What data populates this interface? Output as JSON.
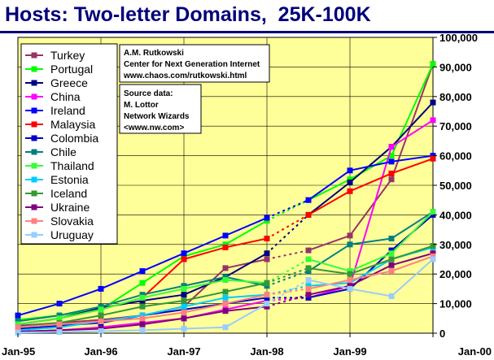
{
  "title": "Hosts: Two-letter Domains,  25K-100K",
  "credit": [
    "A.M. Rutkowski",
    "Center for Next Generation Internet",
    "www.chaos.com/rutkowski.html"
  ],
  "source": [
    "Source data:",
    "M. Lottor",
    "Network Wizards",
    "<www.nw.com>"
  ],
  "colors": {
    "plot_background": "#ffff99",
    "title": "#00007a"
  },
  "chart_data": {
    "type": "line",
    "title": "Hosts: Two-letter Domains,  25K-100K",
    "xlabel": "",
    "ylabel": "",
    "x": [
      1995.0,
      1995.5,
      1996.0,
      1996.5,
      1997.0,
      1997.5,
      1998.0,
      1998.5,
      1999.0,
      1999.5,
      2000.0
    ],
    "x_tick_labels": [
      "Jan-95",
      "Jan-96",
      "Jan-97",
      "Jan-98",
      "Jan-99",
      "Jan-00"
    ],
    "x_tick_positions": [
      1995,
      1996,
      1997,
      1998,
      1999,
      2000
    ],
    "ylim": [
      0,
      100000
    ],
    "y_ticks": [
      0,
      10000,
      20000,
      30000,
      40000,
      50000,
      60000,
      70000,
      80000,
      90000,
      100000
    ],
    "y_tick_labels": [
      "0",
      "10,000",
      "20,000",
      "30,000",
      "40,000",
      "50,000",
      "60,000",
      "70,000",
      "80,000",
      "90,000",
      "100,000"
    ],
    "y_axis_side": "right",
    "grid": true,
    "legend_placement": "left",
    "gap_between": [
      1998.0,
      1998.5
    ],
    "series": [
      {
        "name": "Turkey",
        "color": "#993366",
        "values": [
          2500,
          3500,
          4500,
          6000,
          9000,
          22000,
          25000,
          28000,
          33000,
          52000,
          91000
        ]
      },
      {
        "name": "Portugal",
        "color": "#00ff00",
        "values": [
          4500,
          6000,
          8000,
          17000,
          26000,
          30000,
          38000,
          45000,
          52000,
          60000,
          91000
        ]
      },
      {
        "name": "Greece",
        "color": "#000080",
        "values": [
          3000,
          5000,
          8500,
          11000,
          13000,
          19000,
          27000,
          40000,
          51000,
          63000,
          78000
        ]
      },
      {
        "name": "China",
        "color": "#ff00ff",
        "values": [
          500,
          1000,
          2000,
          3500,
          5000,
          8000,
          11000,
          12000,
          16000,
          63000,
          72000
        ]
      },
      {
        "name": "Ireland",
        "color": "#0000ff",
        "values": [
          6000,
          10000,
          15000,
          21000,
          27000,
          33000,
          39000,
          45000,
          55000,
          58000,
          60000
        ]
      },
      {
        "name": "Malaysia",
        "color": "#ff0000",
        "values": [
          3000,
          5000,
          8000,
          12000,
          25000,
          29000,
          32000,
          40000,
          48000,
          54000,
          59000
        ]
      },
      {
        "name": "Colombia",
        "color": "#0000cc",
        "values": [
          1500,
          2500,
          3500,
          6000,
          8000,
          10000,
          12000,
          12000,
          15000,
          28000,
          40000
        ]
      },
      {
        "name": "Chile",
        "color": "#008080",
        "values": [
          4000,
          6000,
          9000,
          13000,
          16000,
          19000,
          16000,
          21000,
          30000,
          32000,
          41000
        ]
      },
      {
        "name": "Thailand",
        "color": "#33ff33",
        "values": [
          3000,
          5000,
          8000,
          12000,
          15000,
          18000,
          17000,
          25000,
          21000,
          27000,
          41000
        ]
      },
      {
        "name": "Estonia",
        "color": "#00ccff",
        "values": [
          1000,
          2000,
          4000,
          6000,
          9000,
          12000,
          13000,
          16000,
          17000,
          25000,
          29000
        ]
      },
      {
        "name": "Iceland",
        "color": "#339933",
        "values": [
          2000,
          3500,
          6000,
          9000,
          11000,
          14000,
          17000,
          22000,
          20000,
          25000,
          29500
        ]
      },
      {
        "name": "Ukraine",
        "color": "#800080",
        "values": [
          500,
          1000,
          1500,
          3000,
          5000,
          7500,
          9000,
          13000,
          16000,
          23000,
          27000
        ]
      },
      {
        "name": "Slovakia",
        "color": "#ff8080",
        "values": [
          2000,
          3000,
          4000,
          5000,
          7000,
          10000,
          13000,
          15000,
          18000,
          21000,
          26000
        ]
      },
      {
        "name": "Uruguay",
        "color": "#99ccff",
        "values": [
          200,
          400,
          700,
          1000,
          1500,
          2000,
          10000,
          18000,
          15000,
          12500,
          25000
        ]
      }
    ]
  }
}
